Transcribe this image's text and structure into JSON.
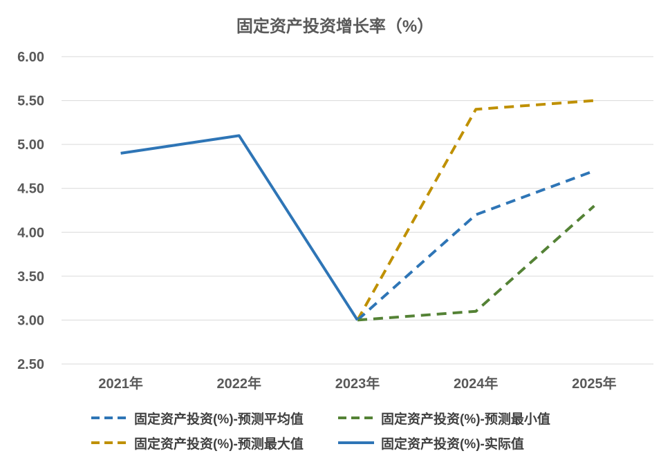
{
  "chart_data": {
    "type": "line",
    "title": "固定资产投资增长率（%）",
    "categories": [
      "2021年",
      "2022年",
      "2023年",
      "2024年",
      "2025年"
    ],
    "ylim": [
      2.5,
      6.0
    ],
    "yticks": [
      "2.50",
      "3.00",
      "3.50",
      "4.00",
      "4.50",
      "5.00",
      "5.50",
      "6.00"
    ],
    "grid": true,
    "legend_position": "bottom",
    "series": [
      {
        "name": "固定资产投资(%)-预测平均值",
        "color": "#2E75B6",
        "dashed": true,
        "values": [
          null,
          null,
          3.0,
          4.2,
          4.7
        ]
      },
      {
        "name": "固定资产投资(%)-预测最小值",
        "color": "#548235",
        "dashed": true,
        "values": [
          null,
          null,
          3.0,
          3.1,
          4.3
        ]
      },
      {
        "name": "固定资产投资(%)-预测最大值",
        "color": "#BF9000",
        "dashed": true,
        "values": [
          null,
          null,
          3.0,
          5.4,
          5.5
        ]
      },
      {
        "name": "固定资产投资(%)-实际值",
        "color": "#2E75B6",
        "dashed": false,
        "values": [
          4.9,
          5.1,
          3.0,
          null,
          null
        ]
      }
    ]
  }
}
